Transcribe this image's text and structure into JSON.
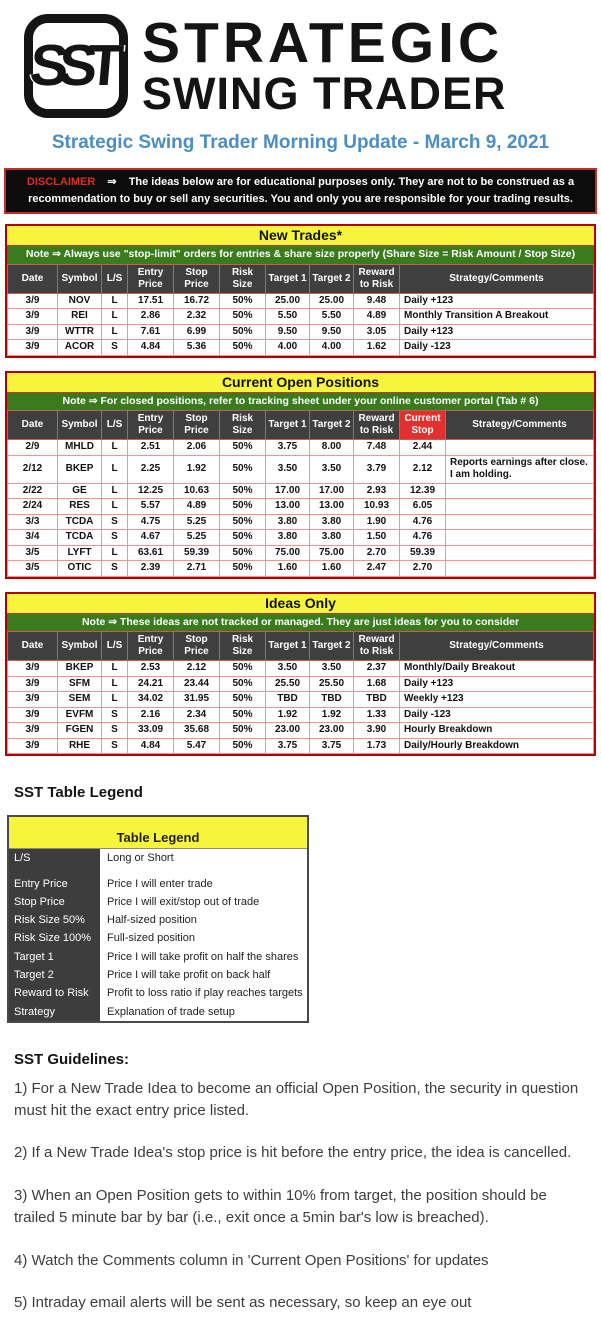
{
  "brand": {
    "monogram": "SST",
    "name_line1": "STRATEGIC",
    "name_line2": "SWING TRADER"
  },
  "title": "Strategic Swing Trader Morning Update - March 9, 2021",
  "disclaimer": {
    "label": "DISCLAIMER",
    "arrow": "⇒",
    "text": "The ideas below are for educational purposes only. They are not to be construed as a recommendation to buy or sell any securities. You and only you are responsible for your trading results."
  },
  "colors": {
    "title_blue": "#4a8ec2",
    "header_yellow": "#f7f43e",
    "note_green": "#3a7b1e",
    "header_gray": "#3f3f3f",
    "current_stop_red": "#e3302e",
    "grid_red": "#f1958d",
    "outer_border_red": "#b00000",
    "disclaimer_red": "#d93025"
  },
  "tables": [
    {
      "id": "new-trades",
      "title": "New Trades*",
      "note": "Note ⇒ Always use \"stop-limit\" orders for entries & share size properly (Share Size = Risk Amount / Stop Size)",
      "columns": [
        "Date",
        "Symbol",
        "L/S",
        "Entry Price",
        "Stop Price",
        "Risk Size",
        "Target 1",
        "Target 2",
        "Reward to Risk",
        "Strategy/Comments"
      ],
      "highlight_column": "",
      "rows": [
        [
          "3/9",
          "NOV",
          "L",
          "17.51",
          "16.72",
          "50%",
          "25.00",
          "25.00",
          "9.48",
          "Daily +123"
        ],
        [
          "3/9",
          "REI",
          "L",
          "2.86",
          "2.32",
          "50%",
          "5.50",
          "5.50",
          "4.89",
          "Monthly Transition A Breakout"
        ],
        [
          "3/9",
          "WTTR",
          "L",
          "7.61",
          "6.99",
          "50%",
          "9.50",
          "9.50",
          "3.05",
          "Daily +123"
        ],
        [
          "3/9",
          "ACOR",
          "S",
          "4.84",
          "5.36",
          "50%",
          "4.00",
          "4.00",
          "1.62",
          "Daily -123"
        ]
      ]
    },
    {
      "id": "current-open-positions",
      "title": "Current Open Positions",
      "note": "Note ⇒ For closed positions, refer to tracking sheet under your online customer portal (Tab # 6)",
      "columns": [
        "Date",
        "Symbol",
        "L/S",
        "Entry Price",
        "Stop Price",
        "Risk Size",
        "Target 1",
        "Target 2",
        "Reward to Risk",
        "Current Stop",
        "Strategy/Comments"
      ],
      "highlight_column": "Current Stop",
      "rows": [
        [
          "2/9",
          "MHLD",
          "L",
          "2.51",
          "2.06",
          "50%",
          "3.75",
          "8.00",
          "7.48",
          "2.44",
          ""
        ],
        [
          "2/12",
          "BKEP",
          "L",
          "2.25",
          "1.92",
          "50%",
          "3.50",
          "3.50",
          "3.79",
          "2.12",
          "Reports earnings after close. I am holding."
        ],
        [
          "2/22",
          "GE",
          "L",
          "12.25",
          "10.63",
          "50%",
          "17.00",
          "17.00",
          "2.93",
          "12.39",
          ""
        ],
        [
          "2/24",
          "RES",
          "L",
          "5.57",
          "4.89",
          "50%",
          "13.00",
          "13.00",
          "10.93",
          "6.05",
          ""
        ],
        [
          "3/3",
          "TCDA",
          "S",
          "4.75",
          "5.25",
          "50%",
          "3.80",
          "3.80",
          "1.90",
          "4.76",
          ""
        ],
        [
          "3/4",
          "TCDA",
          "S",
          "4.67",
          "5.25",
          "50%",
          "3.80",
          "3.80",
          "1.50",
          "4.76",
          ""
        ],
        [
          "3/5",
          "LYFT",
          "L",
          "63.61",
          "59.39",
          "50%",
          "75.00",
          "75.00",
          "2.70",
          "59.39",
          ""
        ],
        [
          "3/5",
          "OTIC",
          "S",
          "2.39",
          "2.71",
          "50%",
          "1.60",
          "1.60",
          "2.47",
          "2.70",
          ""
        ]
      ]
    },
    {
      "id": "ideas-only",
      "title": "Ideas Only",
      "note": "Note ⇒ These ideas are not tracked or managed. They are just ideas for you to consider",
      "columns": [
        "Date",
        "Symbol",
        "L/S",
        "Entry Price",
        "Stop Price",
        "Risk Size",
        "Target 1",
        "Target 2",
        "Reward to Risk",
        "Strategy/Comments"
      ],
      "highlight_column": "",
      "rows": [
        [
          "3/9",
          "BKEP",
          "L",
          "2.53",
          "2.12",
          "50%",
          "3.50",
          "3.50",
          "2.37",
          "Monthly/Daily Breakout"
        ],
        [
          "3/9",
          "SFM",
          "L",
          "24.21",
          "23.44",
          "50%",
          "25.50",
          "25.50",
          "1.68",
          "Daily +123"
        ],
        [
          "3/9",
          "SEM",
          "L",
          "34.02",
          "31.95",
          "50%",
          "TBD",
          "TBD",
          "TBD",
          "Weekly +123"
        ],
        [
          "3/9",
          "EVFM",
          "S",
          "2.16",
          "2.34",
          "50%",
          "1.92",
          "1.92",
          "1.33",
          "Daily -123"
        ],
        [
          "3/9",
          "FGEN",
          "S",
          "33.09",
          "35.68",
          "50%",
          "23.00",
          "23.00",
          "3.90",
          "Hourly Breakdown"
        ],
        [
          "3/9",
          "RHE",
          "S",
          "4.84",
          "5.47",
          "50%",
          "3.75",
          "3.75",
          "1.73",
          "Daily/Hourly Breakdown"
        ]
      ]
    }
  ],
  "legend_section": {
    "heading": "SST Table Legend",
    "table_title": "Table Legend",
    "entries": [
      {
        "term": "L/S",
        "definition": "Long or Short"
      },
      {
        "term": "Entry Price",
        "definition": "Price I will enter trade"
      },
      {
        "term": "Stop Price",
        "definition": "Price I will exit/stop out of trade"
      },
      {
        "term": "Risk Size 50%",
        "definition": "Half-sized position"
      },
      {
        "term": "Risk Size 100%",
        "definition": "Full-sized position"
      },
      {
        "term": "Target 1",
        "definition": "Price I will take profit on half the shares"
      },
      {
        "term": "Target 2",
        "definition": "Price I will take profit on back half"
      },
      {
        "term": "Reward to Risk",
        "definition": "Profit to loss ratio if play reaches targets"
      },
      {
        "term": "Strategy",
        "definition": "Explanation of trade setup"
      }
    ]
  },
  "guidelines": {
    "heading": "SST Guidelines:",
    "items": [
      "1) For a New Trade Idea to become an official Open Position, the security in question must hit the exact entry price listed.",
      "2) If a New Trade Idea's stop price is hit before the entry price, the idea is cancelled.",
      "3) When an Open Position gets to within 10% from target, the position should be trailed 5 minute bar by bar (i.e., exit once a 5min bar's low is breached).",
      "4) Watch the Comments column in 'Current Open Positions' for updates",
      "5) Intraday email alerts will be sent as necessary, so keep an eye out"
    ]
  }
}
